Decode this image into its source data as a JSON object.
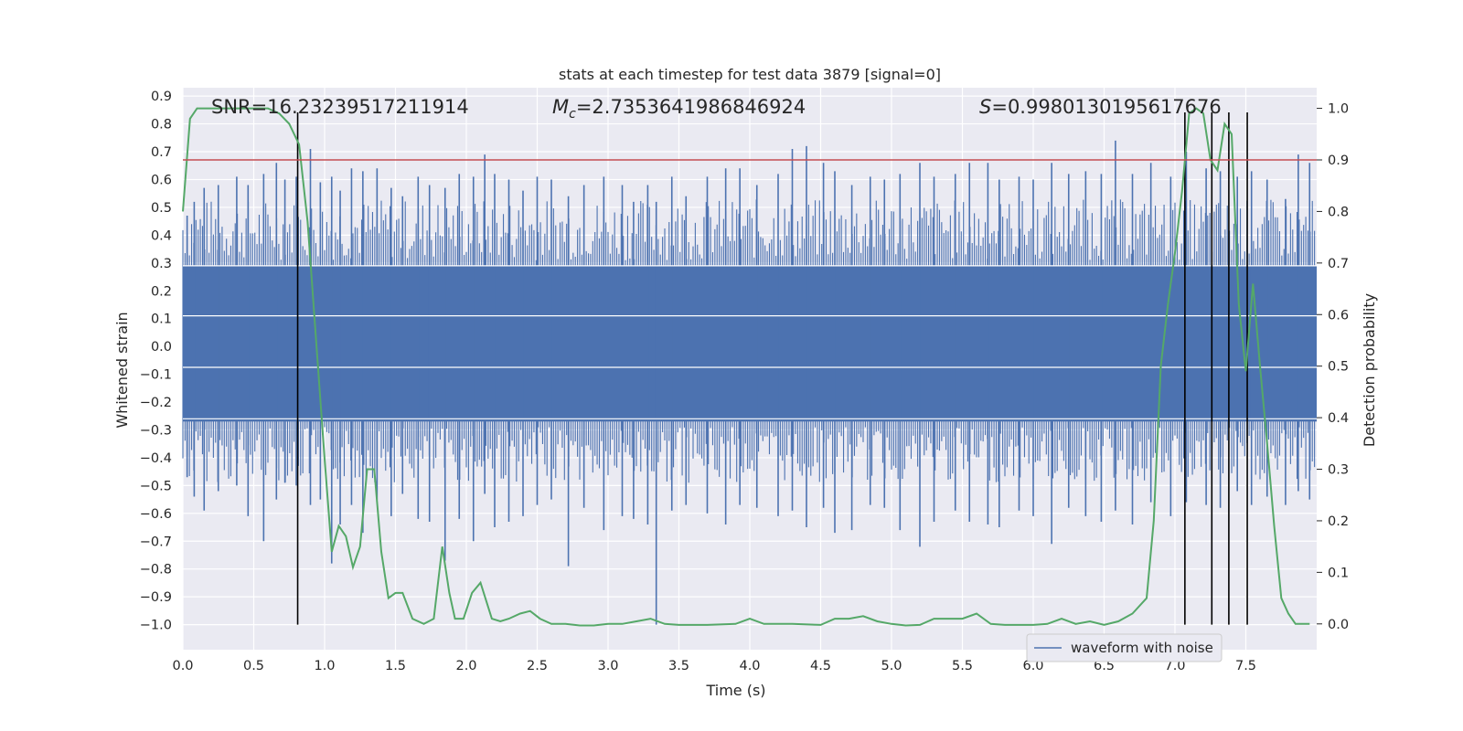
{
  "chart_data": {
    "type": "line",
    "title": "stats at each timestep for test data 3879 [signal=0]",
    "xlabel": "Time (s)",
    "ylabel": "Whitened strain",
    "ylabel_right": "Detection probability",
    "xlim": [
      0.0,
      8.0
    ],
    "ylim": [
      -1.09,
      0.93
    ],
    "ylim_right": [
      -0.05,
      1.04
    ],
    "x_ticks": [
      "0.0",
      "0.5",
      "1.0",
      "1.5",
      "2.0",
      "2.5",
      "3.0",
      "3.5",
      "4.0",
      "4.5",
      "5.0",
      "5.5",
      "6.0",
      "6.5",
      "7.0",
      "7.5"
    ],
    "x_tick_values": [
      0,
      0.5,
      1,
      1.5,
      2,
      2.5,
      3,
      3.5,
      4,
      4.5,
      5,
      5.5,
      6,
      6.5,
      7,
      7.5
    ],
    "y_ticks": [
      "0.9",
      "0.8",
      "0.7",
      "0.6",
      "0.5",
      "0.4",
      "0.3",
      "0.2",
      "0.1",
      "0.0",
      "−0.1",
      "−0.2",
      "−0.3",
      "−0.4",
      "−0.5",
      "−0.6",
      "−0.7",
      "−0.8",
      "−0.9",
      "−1.0"
    ],
    "y_tick_values": [
      0.9,
      0.8,
      0.7,
      0.6,
      0.5,
      0.4,
      0.3,
      0.2,
      0.1,
      0.0,
      -0.1,
      -0.2,
      -0.3,
      -0.4,
      -0.5,
      -0.6,
      -0.7,
      -0.8,
      -0.9,
      -1.0
    ],
    "y_right_ticks": [
      "1.0",
      "0.9",
      "0.8",
      "0.7",
      "0.6",
      "0.5",
      "0.4",
      "0.3",
      "0.2",
      "0.1",
      "0.0"
    ],
    "y_right_tick_values": [
      1.0,
      0.9,
      0.8,
      0.7,
      0.6,
      0.5,
      0.4,
      0.3,
      0.2,
      0.1,
      0.0
    ],
    "annotations": {
      "snr": "SNR=16.23239517211914",
      "mc_prefix": "M",
      "mc_sub": "c",
      "mc_value": "=2.7353641986846924",
      "s_prefix": "S",
      "s_value": "=0.9980130195617676"
    },
    "legend": {
      "placement": "lower-right",
      "entries": [
        "waveform with noise"
      ]
    },
    "grid": true,
    "colors": {
      "background": "#eaeaf2",
      "grid": "#ffffff",
      "waveform": "#4c72b0",
      "probability": "#55a868",
      "threshold": "#c44e52",
      "markers": "#000000"
    },
    "series": [
      {
        "name": "waveform with noise",
        "kind": "noise_band",
        "core_range": [
          -0.27,
          0.29
        ],
        "spikes": [
          [
            0.03,
            0.47,
            -0.47
          ],
          [
            0.08,
            0.52,
            -0.54
          ],
          [
            0.15,
            0.57,
            -0.59
          ],
          [
            0.25,
            0.58,
            -0.52
          ],
          [
            0.38,
            0.61,
            -0.5
          ],
          [
            0.46,
            0.58,
            -0.61
          ],
          [
            0.57,
            0.62,
            -0.7
          ],
          [
            0.66,
            0.66,
            -0.55
          ],
          [
            0.72,
            0.6,
            -0.49
          ],
          [
            0.8,
            0.61,
            -0.5
          ],
          [
            0.9,
            0.71,
            -0.57
          ],
          [
            0.97,
            0.59,
            -0.55
          ],
          [
            1.05,
            0.61,
            -0.78
          ],
          [
            1.11,
            0.56,
            -0.64
          ],
          [
            1.19,
            0.64,
            -0.57
          ],
          [
            1.27,
            0.63,
            -0.67
          ],
          [
            1.37,
            0.64,
            -0.55
          ],
          [
            1.47,
            0.57,
            -0.61
          ],
          [
            1.55,
            0.54,
            -0.53
          ],
          [
            1.66,
            0.61,
            -0.62
          ],
          [
            1.74,
            0.58,
            -0.63
          ],
          [
            1.85,
            0.57,
            -0.77
          ],
          [
            1.95,
            0.62,
            -0.62
          ],
          [
            2.05,
            0.61,
            -0.7
          ],
          [
            2.13,
            0.69,
            -0.53
          ],
          [
            2.2,
            0.62,
            -0.65
          ],
          [
            2.3,
            0.6,
            -0.63
          ],
          [
            2.4,
            0.56,
            -0.61
          ],
          [
            2.5,
            0.61,
            -0.57
          ],
          [
            2.6,
            0.6,
            -0.55
          ],
          [
            2.72,
            0.54,
            -0.79
          ],
          [
            2.83,
            0.58,
            -0.58
          ],
          [
            2.97,
            0.61,
            -0.66
          ],
          [
            3.1,
            0.58,
            -0.61
          ],
          [
            3.18,
            0.52,
            -0.62
          ],
          [
            3.28,
            0.58,
            -0.64
          ],
          [
            3.34,
            0.52,
            -1.0
          ],
          [
            3.45,
            0.61,
            -0.59
          ],
          [
            3.55,
            0.54,
            -0.57
          ],
          [
            3.7,
            0.61,
            -0.6
          ],
          [
            3.83,
            0.64,
            -0.64
          ],
          [
            3.93,
            0.64,
            -0.57
          ],
          [
            4.05,
            0.58,
            -0.58
          ],
          [
            4.2,
            0.62,
            -0.61
          ],
          [
            4.3,
            0.71,
            -0.59
          ],
          [
            4.4,
            0.72,
            -0.65
          ],
          [
            4.52,
            0.66,
            -0.58
          ],
          [
            4.6,
            0.63,
            -0.67
          ],
          [
            4.72,
            0.58,
            -0.66
          ],
          [
            4.85,
            0.61,
            -0.57
          ],
          [
            4.95,
            0.6,
            -0.58
          ],
          [
            5.06,
            0.62,
            -0.66
          ],
          [
            5.2,
            0.66,
            -0.72
          ],
          [
            5.3,
            0.61,
            -0.63
          ],
          [
            5.45,
            0.62,
            -0.59
          ],
          [
            5.55,
            0.66,
            -0.63
          ],
          [
            5.68,
            0.66,
            -0.64
          ],
          [
            5.76,
            0.6,
            -0.65
          ],
          [
            5.9,
            0.61,
            -0.59
          ],
          [
            6.0,
            0.6,
            -0.61
          ],
          [
            6.13,
            0.66,
            -0.71
          ],
          [
            6.25,
            0.62,
            -0.58
          ],
          [
            6.37,
            0.63,
            -0.61
          ],
          [
            6.48,
            0.62,
            -0.63
          ],
          [
            6.58,
            0.74,
            -0.59
          ],
          [
            6.7,
            0.62,
            -0.64
          ],
          [
            6.83,
            0.66,
            -0.56
          ],
          [
            6.97,
            0.61,
            -0.61
          ],
          [
            7.08,
            0.7,
            -0.56
          ],
          [
            7.22,
            0.64,
            -0.57
          ],
          [
            7.32,
            0.63,
            -0.58
          ],
          [
            7.44,
            0.61,
            -0.52
          ],
          [
            7.54,
            0.63,
            -0.57
          ],
          [
            7.65,
            0.6,
            -0.54
          ],
          [
            7.78,
            0.53,
            -0.57
          ],
          [
            7.87,
            0.69,
            -0.52
          ],
          [
            7.95,
            0.66,
            -0.55
          ]
        ]
      },
      {
        "name": "",
        "kind": "probability",
        "x": [
          0.0,
          0.05,
          0.1,
          0.2,
          0.3,
          0.4,
          0.5,
          0.6,
          0.68,
          0.75,
          0.82,
          0.88,
          0.94,
          1.0,
          1.05,
          1.1,
          1.15,
          1.2,
          1.25,
          1.3,
          1.35,
          1.4,
          1.45,
          1.5,
          1.55,
          1.62,
          1.7,
          1.77,
          1.83,
          1.88,
          1.92,
          1.98,
          2.04,
          2.1,
          2.18,
          2.24,
          2.3,
          2.38,
          2.45,
          2.52,
          2.6,
          2.7,
          2.8,
          2.9,
          3.0,
          3.1,
          3.2,
          3.3,
          3.4,
          3.5,
          3.7,
          3.9,
          4.0,
          4.1,
          4.3,
          4.5,
          4.6,
          4.7,
          4.8,
          4.9,
          5.0,
          5.1,
          5.2,
          5.3,
          5.4,
          5.5,
          5.6,
          5.7,
          5.8,
          6.0,
          6.1,
          6.2,
          6.3,
          6.4,
          6.5,
          6.6,
          6.7,
          6.8,
          6.85,
          6.9,
          6.95,
          7.0,
          7.05,
          7.1,
          7.15,
          7.2,
          7.25,
          7.3,
          7.35,
          7.4,
          7.45,
          7.5,
          7.55,
          7.6,
          7.65,
          7.7,
          7.75,
          7.8,
          7.85,
          7.9,
          7.95
        ],
        "y": [
          0.8,
          0.98,
          1.0,
          1.0,
          1.0,
          1.0,
          1.0,
          1.0,
          0.99,
          0.97,
          0.93,
          0.78,
          0.55,
          0.32,
          0.14,
          0.19,
          0.17,
          0.11,
          0.15,
          0.3,
          0.3,
          0.14,
          0.05,
          0.06,
          0.06,
          0.01,
          0.0,
          0.01,
          0.15,
          0.06,
          0.01,
          0.01,
          0.06,
          0.08,
          0.01,
          0.005,
          0.01,
          0.02,
          0.025,
          0.01,
          0.0,
          0.0,
          -0.003,
          -0.003,
          0.0,
          0.0,
          0.005,
          0.01,
          0.0,
          -0.002,
          -0.002,
          0.0,
          0.01,
          0.0,
          0.0,
          -0.002,
          0.01,
          0.01,
          0.015,
          0.005,
          0.0,
          -0.003,
          -0.002,
          0.01,
          0.01,
          0.01,
          0.02,
          0.0,
          -0.002,
          -0.002,
          0.0,
          0.01,
          0.0,
          0.005,
          -0.002,
          0.005,
          0.02,
          0.05,
          0.2,
          0.5,
          0.62,
          0.72,
          0.84,
          0.99,
          1.0,
          0.99,
          0.9,
          0.88,
          0.97,
          0.95,
          0.62,
          0.49,
          0.66,
          0.5,
          0.35,
          0.19,
          0.05,
          0.02,
          0.0,
          0.0,
          0.0
        ]
      }
    ],
    "threshold_right": 0.9,
    "marker_lines": [
      {
        "x": 0.81,
        "y_top": 0.0,
        "y_bottom": -1.0
      },
      {
        "x": 7.07,
        "y_top": 0.0,
        "y_bottom": -1.0
      },
      {
        "x": 7.26,
        "y_top": 0.0,
        "y_bottom": -1.0
      },
      {
        "x": 7.38,
        "y_top": 0.0,
        "y_bottom": -1.0
      },
      {
        "x": 7.51,
        "y_top": 0.0,
        "y_bottom": -1.0
      }
    ]
  }
}
